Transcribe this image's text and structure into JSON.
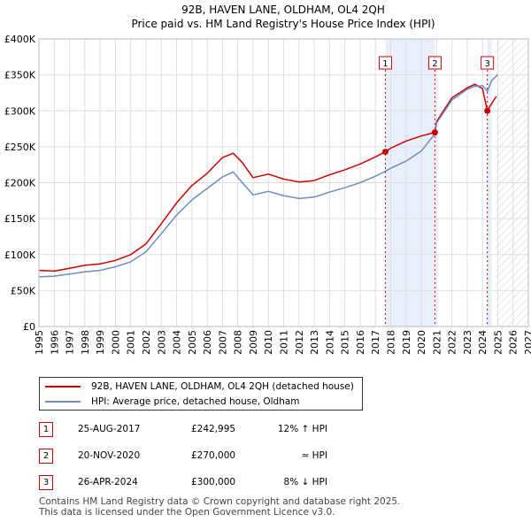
{
  "chart_data": {
    "type": "line",
    "title": "92B, HAVEN LANE, OLDHAM, OL4 2QH",
    "subtitle": "Price paid vs. HM Land Registry's House Price Index (HPI)",
    "xlabel": "",
    "ylabel": "",
    "xlim": [
      1995,
      2027
    ],
    "ylim": [
      0,
      400000
    ],
    "x_ticks": [
      "1995",
      "1996",
      "1997",
      "1998",
      "1999",
      "2000",
      "2001",
      "2002",
      "2003",
      "2004",
      "2005",
      "2006",
      "2007",
      "2008",
      "2009",
      "2010",
      "2011",
      "2012",
      "2013",
      "2014",
      "2015",
      "2016",
      "2017",
      "2018",
      "2019",
      "2020",
      "2021",
      "2022",
      "2023",
      "2024",
      "2025",
      "2026",
      "2027"
    ],
    "y_ticks": [
      {
        "value": 0,
        "label": "£0"
      },
      {
        "value": 50000,
        "label": "£50K"
      },
      {
        "value": 100000,
        "label": "£100K"
      },
      {
        "value": 150000,
        "label": "£150K"
      },
      {
        "value": 200000,
        "label": "£200K"
      },
      {
        "value": 250000,
        "label": "£250K"
      },
      {
        "value": 300000,
        "label": "£300K"
      },
      {
        "value": 350000,
        "label": "£350K"
      },
      {
        "value": 400000,
        "label": "£400K"
      }
    ],
    "grid": true,
    "series": [
      {
        "name": "92B, HAVEN LANE, OLDHAM, OL4 2QH (detached house)",
        "color": "#cc0000",
        "x": [
          1995.0,
          1996.0,
          1997.0,
          1998.0,
          1999.0,
          2000.0,
          2001.0,
          2002.0,
          2003.0,
          2004.0,
          2005.0,
          2006.0,
          2007.0,
          2007.7,
          2008.3,
          2009.0,
          2010.0,
          2011.0,
          2012.0,
          2013.0,
          2014.0,
          2015.0,
          2016.0,
          2017.0,
          2017.65,
          2018.0,
          2019.0,
          2020.0,
          2020.89,
          2021.0,
          2022.0,
          2023.0,
          2023.5,
          2024.0,
          2024.32,
          2024.6,
          2024.9
        ],
        "values": [
          78000,
          77000,
          81000,
          85000,
          87000,
          92000,
          100000,
          115000,
          143000,
          172000,
          196000,
          213000,
          235000,
          241000,
          228000,
          207000,
          212000,
          205000,
          201000,
          203000,
          211000,
          218000,
          226000,
          236000,
          242995,
          248000,
          258000,
          265000,
          270000,
          285000,
          318000,
          332000,
          337000,
          331000,
          300000,
          310000,
          320000
        ]
      },
      {
        "name": "HPI: Average price, detached house, Oldham",
        "color": "#6c8ebf",
        "x": [
          1995.0,
          1996.0,
          1997.0,
          1998.0,
          1999.0,
          2000.0,
          2001.0,
          2002.0,
          2003.0,
          2004.0,
          2005.0,
          2006.0,
          2007.0,
          2007.7,
          2008.3,
          2009.0,
          2010.0,
          2011.0,
          2012.0,
          2013.0,
          2014.0,
          2015.0,
          2016.0,
          2017.0,
          2017.65,
          2018.0,
          2019.0,
          2020.0,
          2020.89,
          2021.0,
          2022.0,
          2023.0,
          2023.5,
          2024.0,
          2024.32,
          2024.6,
          2025.0
        ],
        "values": [
          69000,
          70000,
          73000,
          76000,
          78000,
          83000,
          90000,
          104000,
          129000,
          155000,
          176000,
          192000,
          208000,
          215000,
          200000,
          183000,
          188000,
          182000,
          178000,
          180000,
          187000,
          193000,
          200000,
          209000,
          216000,
          220000,
          230000,
          244000,
          268000,
          283000,
          315000,
          330000,
          334000,
          335000,
          327000,
          342000,
          350000
        ]
      }
    ],
    "sales": [
      {
        "n": "1",
        "x": 2017.65,
        "value": 242995
      },
      {
        "n": "2",
        "x": 2020.89,
        "value": 270000
      },
      {
        "n": "3",
        "x": 2024.32,
        "value": 300000
      }
    ],
    "shaded_ranges": [
      [
        2017.65,
        2020.89
      ],
      [
        2024.32,
        2024.6
      ]
    ],
    "forecast_start": 2024.9
  },
  "legend": {
    "property_label": "92B, HAVEN LANE, OLDHAM, OL4 2QH (detached house)",
    "hpi_label": "HPI: Average price, detached house, Oldham",
    "property_color": "#cc0000",
    "hpi_color": "#6c8ebf"
  },
  "sales_table": [
    {
      "num": "1",
      "date": "25-AUG-2017",
      "price": "£242,995",
      "hpi": "12% ↑ HPI"
    },
    {
      "num": "2",
      "date": "20-NOV-2020",
      "price": "£270,000",
      "hpi": "≈ HPI"
    },
    {
      "num": "3",
      "date": "26-APR-2024",
      "price": "£300,000",
      "hpi": "8% ↓ HPI"
    }
  ],
  "footer": {
    "line1": "Contains HM Land Registry data © Crown copyright and database right 2025.",
    "line2": "This data is licensed under the Open Government Licence v3.0."
  }
}
